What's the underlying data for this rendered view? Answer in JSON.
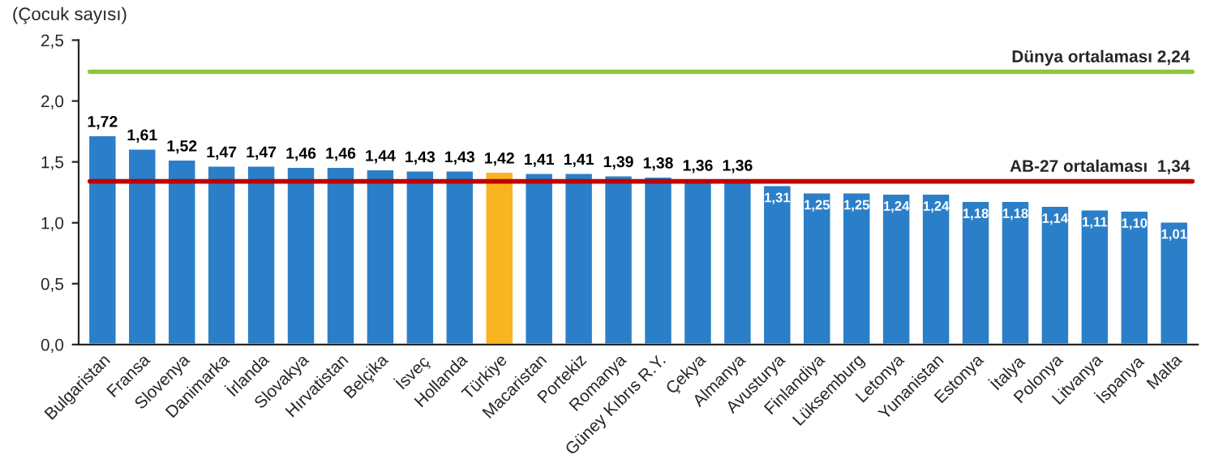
{
  "chart_data": {
    "type": "bar",
    "ylabel": "(Çocuk sayısı)",
    "categories": [
      "Bulgaristan",
      "Fransa",
      "Slovenya",
      "Danimarka",
      "İrlanda",
      "Slovakya",
      "Hırvatistan",
      "Belçika",
      "İsveç",
      "Hollanda",
      "Türkiye",
      "Macaristan",
      "Portekiz",
      "Romanya",
      "Güney Kıbrıs R.Y.",
      "Çekya",
      "Almanya",
      "Avusturya",
      "Finlandiya",
      "Lüksemburg",
      "Letonya",
      "Yunanistan",
      "Estonya",
      "İtalya",
      "Polonya",
      "Litvanya",
      "İspanya",
      "Malta"
    ],
    "values": [
      1.72,
      1.61,
      1.52,
      1.47,
      1.47,
      1.46,
      1.46,
      1.44,
      1.43,
      1.43,
      1.42,
      1.41,
      1.41,
      1.39,
      1.38,
      1.36,
      1.36,
      1.31,
      1.25,
      1.25,
      1.24,
      1.24,
      1.18,
      1.18,
      1.14,
      1.11,
      1.1,
      1.01
    ],
    "value_labels": [
      "1,72",
      "1,61",
      "1,52",
      "1,47",
      "1,47",
      "1,46",
      "1,46",
      "1,44",
      "1,43",
      "1,43",
      "1,42",
      "1,41",
      "1,41",
      "1,39",
      "1,38",
      "1,36",
      "1,36",
      "1,31",
      "1,25",
      "1,25",
      "1,24",
      "1,24",
      "1,18",
      "1,18",
      "1,14",
      "1,11",
      "1,10",
      "1,01"
    ],
    "colors": [
      "#2b7fc8",
      "#2b7fc8",
      "#2b7fc8",
      "#2b7fc8",
      "#2b7fc8",
      "#2b7fc8",
      "#2b7fc8",
      "#2b7fc8",
      "#2b7fc8",
      "#2b7fc8",
      "#f8b520",
      "#2b7fc8",
      "#2b7fc8",
      "#2b7fc8",
      "#2b7fc8",
      "#2b7fc8",
      "#2b7fc8",
      "#2b7fc8",
      "#2b7fc8",
      "#2b7fc8",
      "#2b7fc8",
      "#2b7fc8",
      "#2b7fc8",
      "#2b7fc8",
      "#2b7fc8",
      "#2b7fc8",
      "#2b7fc8",
      "#2b7fc8"
    ],
    "ylim": [
      0,
      2.5
    ],
    "yticks": [
      {
        "value": 0,
        "label": "0,0"
      },
      {
        "value": 0.5,
        "label": "0,5"
      },
      {
        "value": 1.0,
        "label": "1,0"
      },
      {
        "value": 1.5,
        "label": "1,5"
      },
      {
        "value": 2.0,
        "label": "2,0"
      },
      {
        "value": 2.5,
        "label": "2,5"
      }
    ],
    "ref_lines": [
      {
        "axis": "y",
        "value": 2.24,
        "label": "Dünya ortalaması 2,24",
        "color": "#8dc63f"
      },
      {
        "axis": "y",
        "value": 1.34,
        "label": "AB-27 ortalaması  1,34",
        "color": "#c00000"
      }
    ],
    "grid": false,
    "legend": false
  }
}
